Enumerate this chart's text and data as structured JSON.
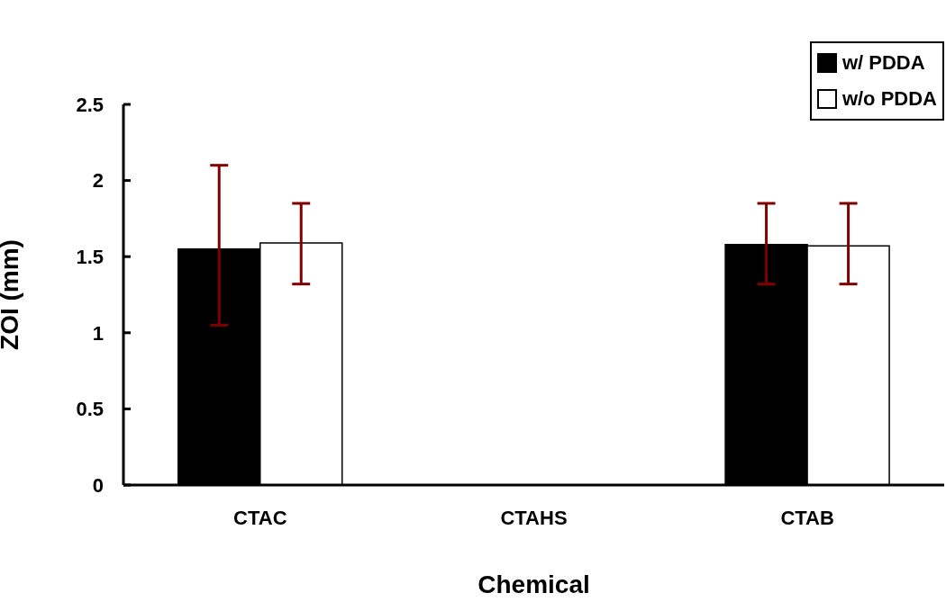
{
  "chart_data": {
    "type": "bar",
    "xlabel": "Chemical",
    "ylabel": "ZOI (mm)",
    "categories": [
      "CTAC",
      "CTAHS",
      "CTAB"
    ],
    "series": [
      {
        "name": "w/ PDDA",
        "color": "#000000",
        "values": [
          1.55,
          0,
          1.58
        ],
        "errors": [
          [
            1.05,
            2.1
          ],
          null,
          [
            1.32,
            1.85
          ]
        ]
      },
      {
        "name": "w/o PDDA",
        "color": "#ffffff",
        "values": [
          1.59,
          0,
          1.57
        ],
        "errors": [
          [
            1.32,
            1.85
          ],
          null,
          [
            1.32,
            1.85
          ]
        ]
      }
    ],
    "ylim": [
      0,
      2.5
    ],
    "yticks": [
      0,
      0.5,
      1,
      1.5,
      2,
      2.5
    ],
    "grid": false,
    "legend": "top right"
  }
}
